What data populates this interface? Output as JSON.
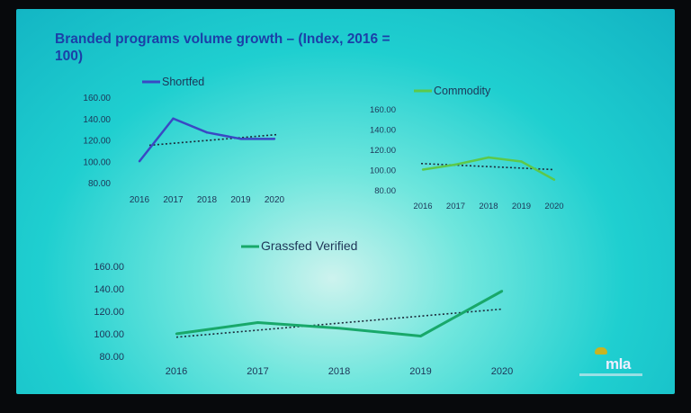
{
  "title": "Branded programs volume growth – (Index, 2016 = 100)",
  "logo": {
    "text": "mla"
  },
  "chart_data": [
    {
      "type": "line",
      "series": [
        {
          "name": "Shortfed",
          "x": [
            "2016",
            "2017",
            "2018",
            "2019",
            "2020"
          ],
          "values": [
            100,
            140,
            127,
            121,
            121
          ],
          "trend": [
            115,
            125
          ],
          "color": "#3a48c4"
        }
      ],
      "y_ticks": [
        "160.00",
        "140.00",
        "120.00",
        "100.00",
        "80.00"
      ],
      "ylim": [
        80,
        160
      ]
    },
    {
      "type": "line",
      "series": [
        {
          "name": "Commodity",
          "x": [
            "2016",
            "2017",
            "2018",
            "2019",
            "2020"
          ],
          "values": [
            100,
            105,
            112,
            108,
            90
          ],
          "trend": [
            106,
            100
          ],
          "color": "#5cc94a"
        }
      ],
      "y_ticks": [
        "160.00",
        "140.00",
        "120.00",
        "100.00",
        "80.00"
      ],
      "ylim": [
        80,
        160
      ]
    },
    {
      "type": "line",
      "series": [
        {
          "name": "Grassfed Verified",
          "x": [
            "2016",
            "2017",
            "2018",
            "2019",
            "2020"
          ],
          "values": [
            100,
            110,
            105,
            98,
            138
          ],
          "trend": [
            97,
            122
          ],
          "color": "#18a86a"
        }
      ],
      "y_ticks": [
        "160.00",
        "140.00",
        "120.00",
        "100.00",
        "80.00"
      ],
      "ylim": [
        80,
        160
      ]
    }
  ]
}
